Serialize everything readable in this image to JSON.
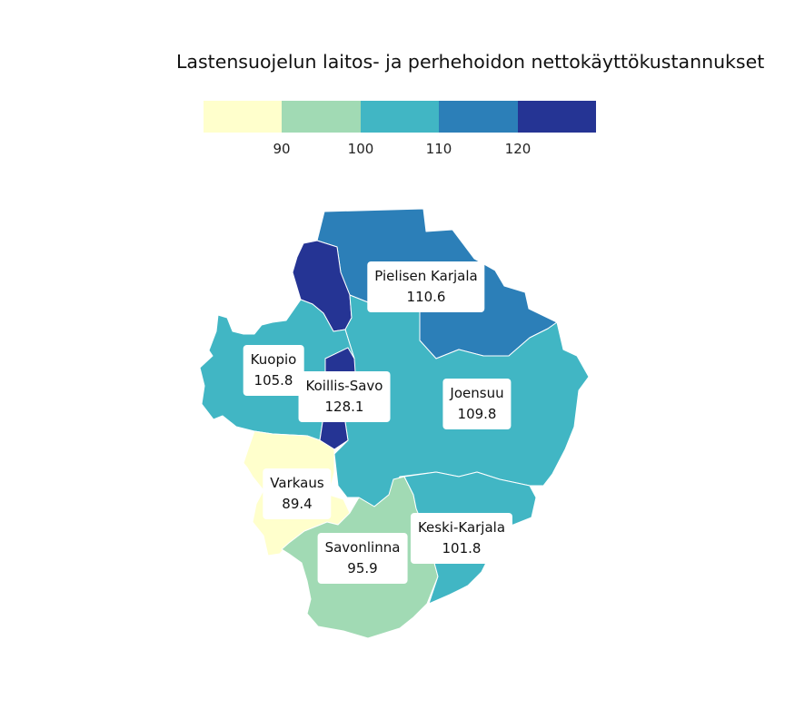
{
  "title": "Lastensuojelun laitos- ja perhehoidon nettokäyttökustannukset",
  "legend": {
    "colors": [
      "#ffffcc",
      "#a1dab4",
      "#41b6c4",
      "#2c7fb8",
      "#253494"
    ],
    "ticks": [
      "90",
      "100",
      "110",
      "120"
    ]
  },
  "regions": [
    {
      "name": "Pielisen Karjala",
      "value": "110.6",
      "color": "#2c7fb8"
    },
    {
      "name": "Kuopio",
      "value": "105.8",
      "color": "#41b6c4"
    },
    {
      "name": "Koillis-Savo",
      "value": "128.1",
      "color": "#253494"
    },
    {
      "name": "Joensuu",
      "value": "109.8",
      "color": "#41b6c4"
    },
    {
      "name": "Varkaus",
      "value": "89.4",
      "color": "#ffffcc"
    },
    {
      "name": "Keski-Karjala",
      "value": "101.8",
      "color": "#41b6c4"
    },
    {
      "name": "Savonlinna",
      "value": "95.9",
      "color": "#a1dab4"
    }
  ]
}
